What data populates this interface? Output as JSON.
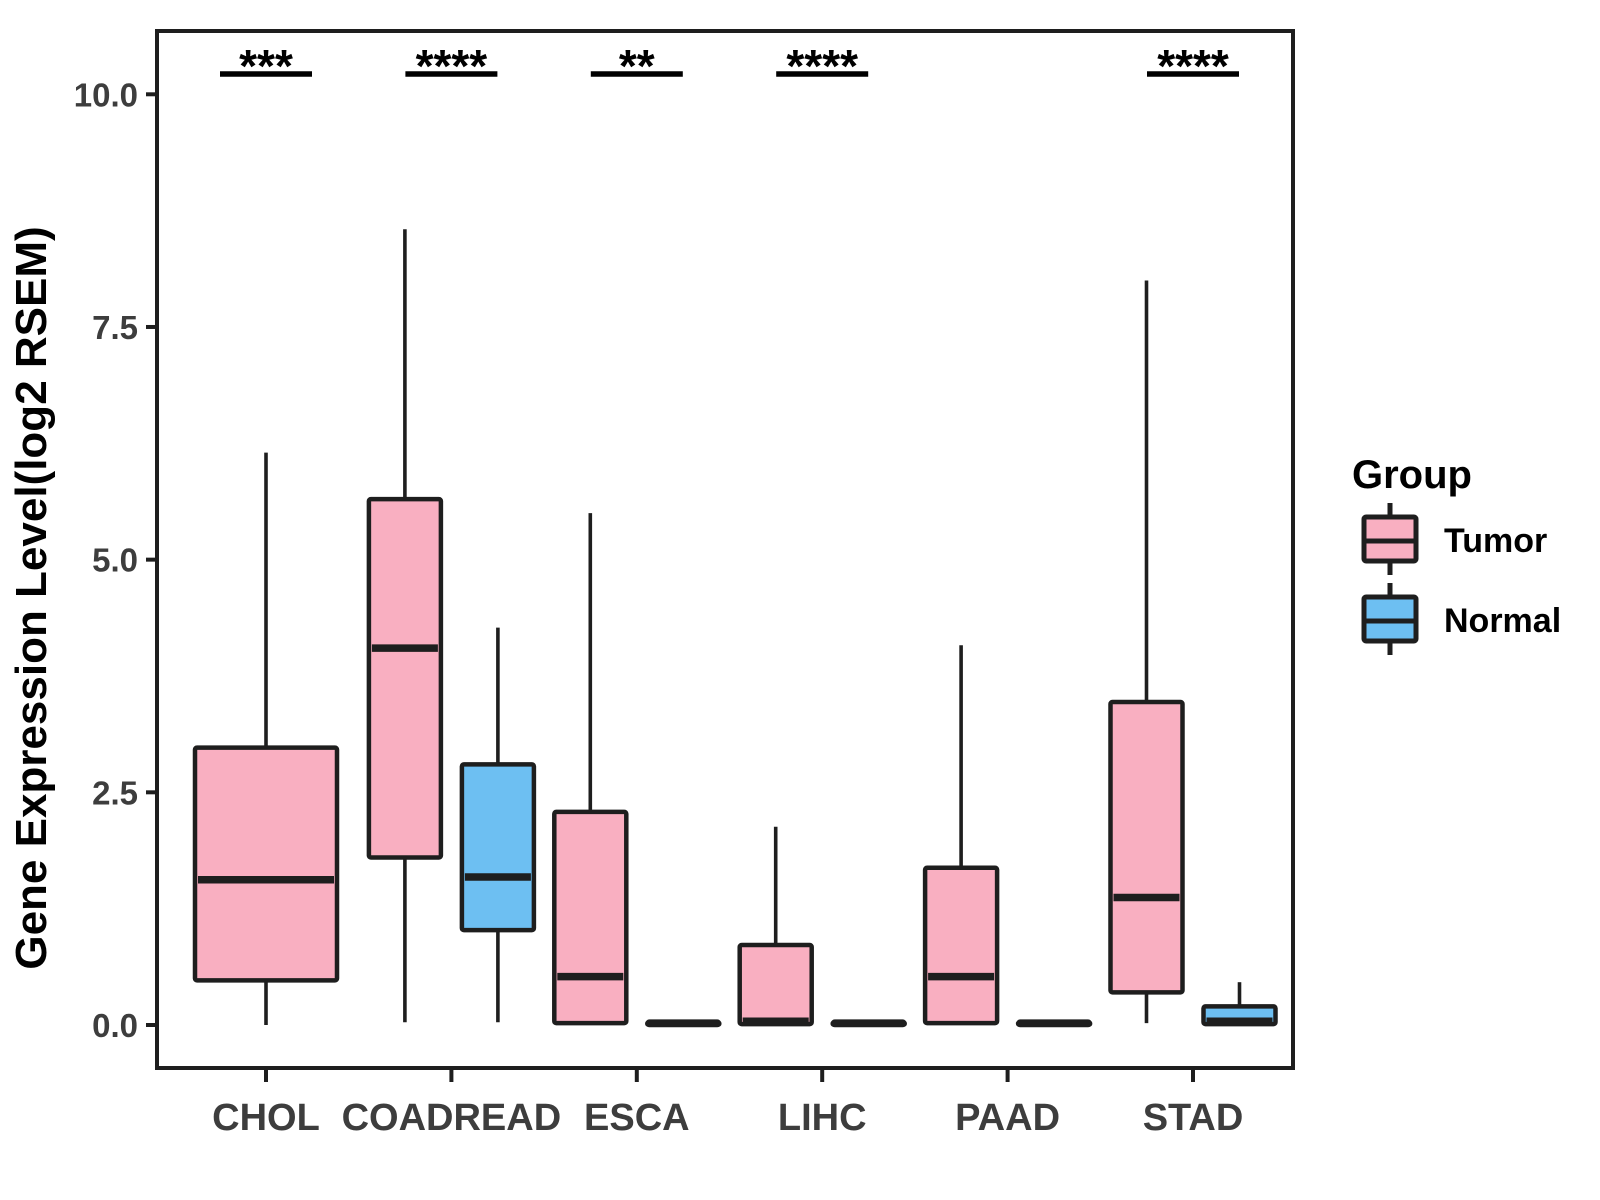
{
  "chart_data": {
    "type": "boxplot",
    "title": "",
    "ylabel": "Gene Expression Level(log2 RSEM)",
    "xlabel": "",
    "ylim": [
      -0.45,
      10.65
    ],
    "grid": false,
    "legend_position": "right",
    "yticks": {
      "values": [
        0.0,
        2.5,
        5.0,
        7.5,
        10.0
      ],
      "labels": [
        "0.0",
        "2.5",
        "5.0",
        "7.5",
        "10.0"
      ]
    },
    "categories": [
      "CHOL",
      "COADREAD",
      "ESCA",
      "LIHC",
      "PAAD",
      "STAD"
    ],
    "series": [
      {
        "name": "Tumor",
        "color": "#F9AFC1",
        "stats": [
          {
            "min": 0.0,
            "q1": 0.48,
            "med": 1.56,
            "q3": 2.98,
            "max": 6.15
          },
          {
            "min": 0.03,
            "q1": 1.8,
            "med": 4.05,
            "q3": 5.65,
            "max": 8.55
          },
          {
            "min": 0.0,
            "q1": 0.02,
            "med": 0.52,
            "q3": 2.29,
            "max": 5.5
          },
          {
            "min": 0.0,
            "q1": 0.01,
            "med": 0.04,
            "q3": 0.86,
            "max": 2.13
          },
          {
            "min": 0.0,
            "q1": 0.02,
            "med": 0.52,
            "q3": 1.69,
            "max": 4.08
          },
          {
            "min": 0.02,
            "q1": 0.35,
            "med": 1.37,
            "q3": 3.47,
            "max": 8.0
          }
        ]
      },
      {
        "name": "Normal",
        "color": "#6DBFF2",
        "stats": [
          null,
          {
            "min": 0.03,
            "q1": 1.02,
            "med": 1.59,
            "q3": 2.8,
            "max": 4.27
          },
          {
            "min": 0.0,
            "q1": 0.0,
            "med": 0.02,
            "q3": 0.03,
            "max": 0.05
          },
          {
            "min": 0.0,
            "q1": 0.0,
            "med": 0.02,
            "q3": 0.03,
            "max": 0.05
          },
          {
            "min": 0.0,
            "q1": 0.0,
            "med": 0.02,
            "q3": 0.03,
            "max": 0.05
          },
          {
            "min": 0.0,
            "q1": 0.01,
            "med": 0.04,
            "q3": 0.2,
            "max": 0.46
          }
        ]
      }
    ],
    "significance": [
      {
        "category": "CHOL",
        "label": "***"
      },
      {
        "category": "COADREAD",
        "label": "****"
      },
      {
        "category": "ESCA",
        "label": "**"
      },
      {
        "category": "LIHC",
        "label": "****"
      },
      {
        "category": "STAD",
        "label": "****"
      }
    ],
    "legend": {
      "title": "Group",
      "entries": [
        {
          "label": "Tumor",
          "color": "#F9AFC1"
        },
        {
          "label": "Normal",
          "color": "#6DBFF2"
        }
      ]
    },
    "colors": {
      "box_border": "#1E1E1E",
      "axis_frame": "#1E1E1E",
      "tick_label": "#3D3D3D",
      "axis_title": "#000000",
      "significance": "#000000",
      "background": "#FFFFFF"
    }
  }
}
